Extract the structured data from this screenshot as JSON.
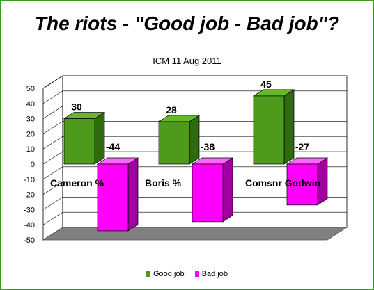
{
  "chart_data": {
    "type": "bar",
    "title": "The riots - \"Good job - Bad job\"?",
    "subtitle": "ICM 11 Aug 2011",
    "categories": [
      "Cameron  %",
      "Boris %",
      "Comsnr  Godwin"
    ],
    "series": [
      {
        "name": "Good job",
        "values": [
          30,
          28,
          45
        ],
        "color": "#4e9a1c",
        "top_color": "#63b82c",
        "side_color": "#2f6a10"
      },
      {
        "name": "Bad job",
        "values": [
          -44,
          -38,
          -27
        ],
        "color": "#ff00ff",
        "top_color": "#ff66ff",
        "side_color": "#a000a0"
      }
    ],
    "yticks": [
      50,
      40,
      30,
      20,
      10,
      0,
      -10,
      -20,
      -30,
      -40,
      -50
    ],
    "ylim": [
      -50,
      50
    ],
    "grid": true,
    "legend": "bottom",
    "floor_color": "#808080"
  }
}
